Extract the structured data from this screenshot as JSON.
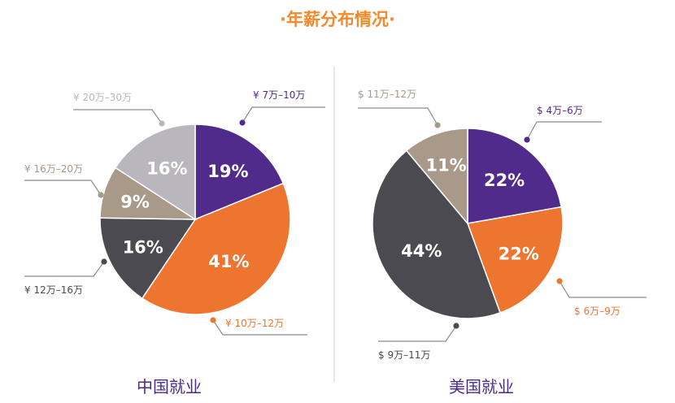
{
  "page": {
    "title": "·年薪分布情况·"
  },
  "colors": {
    "title": "#f08a2c",
    "purple": "#502b8c",
    "orange": "#ee7530",
    "dark": "#4b4a50",
    "tan": "#a99988",
    "lightgray": "#b9b7bd",
    "divider": "#d9d9d9",
    "leader": "#8c8c8c"
  },
  "chart_data": [
    {
      "type": "pie",
      "title": "中国就业",
      "slices": [
        {
          "label": "¥ 7万–10万",
          "value": 19,
          "pct": "19%",
          "color": "#502b8c"
        },
        {
          "label": "¥ 10万–12万",
          "value": 41,
          "pct": "41%",
          "color": "#ee7530"
        },
        {
          "label": "¥ 12万–16万",
          "value": 16,
          "pct": "16%",
          "color": "#4b4a50"
        },
        {
          "label": "¥ 16万–20万",
          "value": 9,
          "pct": "9%",
          "color": "#a99988"
        },
        {
          "label": "¥ 20万–30万",
          "value": 16,
          "pct": "16%",
          "color": "#b9b7bd"
        }
      ]
    },
    {
      "type": "pie",
      "title": "美国就业",
      "slices": [
        {
          "label": "$ 4万–6万",
          "value": 22,
          "pct": "22%",
          "color": "#502b8c"
        },
        {
          "label": "$ 6万–9万",
          "value": 22,
          "pct": "22%",
          "color": "#ee7530"
        },
        {
          "label": "$ 9万–11万",
          "value": 44,
          "pct": "44%",
          "color": "#4b4a50"
        },
        {
          "label": "$ 11万–12万",
          "value": 11,
          "pct": "11%",
          "color": "#a99988"
        }
      ]
    }
  ]
}
